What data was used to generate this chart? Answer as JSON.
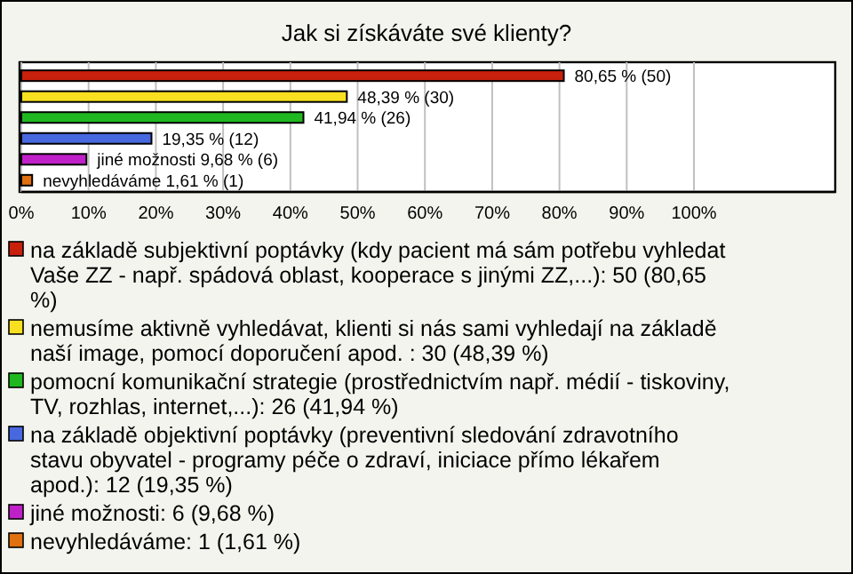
{
  "chart_data": {
    "type": "bar",
    "orientation": "horizontal",
    "stacked": true,
    "title": "Jak si získáváte své klienty?",
    "categories": [
      null,
      null,
      null,
      null,
      null,
      null
    ],
    "series": [
      {
        "name": "na základě subjektivní poptávky (kdy pacient má sám potřebu vyhledat Vaše ZZ - např. spádová oblast, kooperace s jinými ZZ,...): 50 (80,65 %)",
        "color": "#c8200c",
        "values": [
          80.65,
          null,
          null,
          null,
          null,
          null
        ],
        "value_labels": [
          "80,65 % (50)",
          null,
          null,
          null,
          null,
          null
        ]
      },
      {
        "name": "nemusíme aktivně vyhledávat, klienti si nás sami vyhledají na základě naší image, pomocí doporučení apod. : 30 (48,39 %)",
        "color": "#f8e020",
        "values": [
          null,
          48.39,
          null,
          null,
          null,
          null
        ],
        "value_labels": [
          null,
          "48,39 % (30)",
          null,
          null,
          null,
          null
        ]
      },
      {
        "name": "pomocní komunikační strategie (prostřednictvím např. médií - tiskoviny, TV, rozhlas, internet,...): 26 (41,94 %)",
        "color": "#20b820",
        "values": [
          null,
          null,
          41.94,
          null,
          null,
          null
        ],
        "value_labels": [
          null,
          null,
          "41,94 % (26)",
          null,
          null,
          null
        ]
      },
      {
        "name": "na základě objektivní poptávky (preventivní sledování zdravotního stavu obyvatel - programy péče o zdraví, iniciace přímo lékařem apod.): 12 (19,35 %)",
        "color": "#4868e0",
        "values": [
          null,
          null,
          null,
          19.35,
          null,
          null
        ],
        "value_labels": [
          null,
          null,
          null,
          "19,35 % (12)",
          null,
          null
        ]
      },
      {
        "name": "jiné možnosti: 6 (9,68 %)",
        "color": "#c020c8",
        "values": [
          null,
          null,
          null,
          null,
          9.68,
          null
        ],
        "value_labels": [
          null,
          null,
          null,
          null,
          "jiné možnosti 9,68 % (6)",
          null
        ]
      },
      {
        "name": "nevyhledáváme: 1 (1,61 %)",
        "color": "#e07010",
        "values": [
          null,
          null,
          null,
          null,
          null,
          1.61
        ],
        "value_labels": [
          null,
          null,
          null,
          null,
          null,
          "nevyhledáváme 1,61 % (1)"
        ]
      }
    ],
    "xlim": [
      0,
      121
    ],
    "xticks": [
      {
        "value": 0,
        "label": "0%"
      },
      {
        "value": 10,
        "label": "10%"
      },
      {
        "value": 20,
        "label": "20%"
      },
      {
        "value": 30,
        "label": "30%"
      },
      {
        "value": 40,
        "label": "40%"
      },
      {
        "value": 50,
        "label": "50%"
      },
      {
        "value": 60,
        "label": "60%"
      },
      {
        "value": 70,
        "label": "70%"
      },
      {
        "value": 80,
        "label": "80%"
      },
      {
        "value": 90,
        "label": "90%"
      },
      {
        "value": 100,
        "label": "100%"
      }
    ],
    "grid": "x",
    "tick_labels": "x",
    "legend": "bottom"
  }
}
